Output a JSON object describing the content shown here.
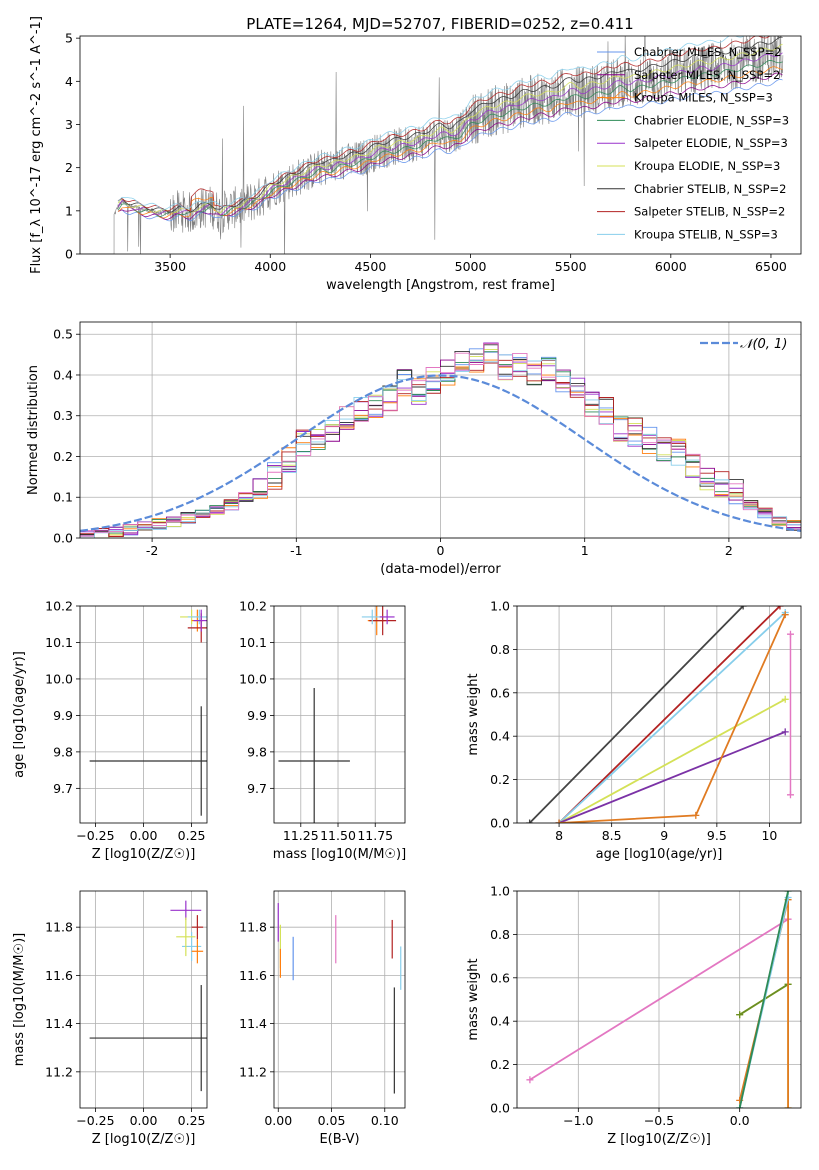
{
  "figure_title": "PLATE=1264, MJD=52707, FIBERID=0252, z=0.411",
  "chart_data": [
    {
      "id": "spectrum",
      "type": "line",
      "title": "PLATE=1264, MJD=52707, FIBERID=0252, z=0.411",
      "xlabel": "wavelength [Angstrom, rest frame]",
      "ylabel": "Flux [f_λ 10^-17 erg cm^-2 s^-1 A^-1]",
      "xlim": [
        3050,
        6650
      ],
      "ylim": [
        0,
        5.05
      ],
      "xticks": [
        3500,
        4000,
        4500,
        5000,
        5500,
        6000,
        6500
      ],
      "yticks": [
        0,
        1,
        2,
        3,
        4,
        5
      ],
      "grid": false,
      "legend_position": "top-right",
      "data_start": 3220,
      "model_start": 3240,
      "observed": {
        "x": [
          3220,
          3240,
          3260,
          3300,
          3350,
          3400,
          3450,
          3500,
          3550,
          3600,
          3650,
          3700,
          3750,
          3800,
          3850,
          3900,
          3950,
          4000,
          4050,
          4100,
          4150,
          4200,
          4250,
          4300,
          4350,
          4400,
          4450,
          4500,
          4550,
          4600,
          4650,
          4700,
          4750,
          4800,
          4850,
          4900,
          4950,
          5000,
          5050,
          5100,
          5150,
          5200,
          5250,
          5300,
          5350,
          5400,
          5450,
          5500,
          5550,
          5600,
          5650,
          5700,
          5750,
          5800,
          5850,
          5900,
          5950,
          6000,
          6050,
          6100,
          6150,
          6200,
          6250,
          6300,
          6350,
          6400,
          6450,
          6500,
          6550
        ],
        "y": [
          0.9,
          1.1,
          1.2,
          1.1,
          1.05,
          1.0,
          0.95,
          0.95,
          1.0,
          0.95,
          1.05,
          1.1,
          0.95,
          1.05,
          1.1,
          1.2,
          1.3,
          1.5,
          1.6,
          1.7,
          1.8,
          1.9,
          2.0,
          2.0,
          2.1,
          2.15,
          2.2,
          2.3,
          2.4,
          2.45,
          2.5,
          2.55,
          2.6,
          2.7,
          2.8,
          2.75,
          2.85,
          3.1,
          3.2,
          3.3,
          3.35,
          3.4,
          3.5,
          3.55,
          3.6,
          3.6,
          3.7,
          3.8,
          3.75,
          3.8,
          3.85,
          3.9,
          4.0,
          3.95,
          4.0,
          4.05,
          4.1,
          4.15,
          4.2,
          4.25,
          4.3,
          4.3,
          4.35,
          4.4,
          4.45,
          4.5,
          4.55,
          4.6,
          4.65
        ]
      },
      "series": [
        {
          "name": "Chabrier MILES, N_SSP=2",
          "color": "#6495ed"
        },
        {
          "name": "Salpeter MILES, N_SSP=2",
          "color": "#8b008b"
        },
        {
          "name": "Kroupa MILES, N_SSP=3",
          "color": "#ff7f0e"
        },
        {
          "name": "Chabrier ELODIE, N_SSP=3",
          "color": "#2e8b57"
        },
        {
          "name": "Salpeter ELODIE, N_SSP=3",
          "color": "#9932cc"
        },
        {
          "name": "Kroupa ELODIE, N_SSP=3",
          "color": "#d4e157"
        },
        {
          "name": "Chabrier STELIB, N_SSP=2",
          "color": "#333333"
        },
        {
          "name": "Salpeter STELIB, N_SSP=2",
          "color": "#b22222"
        },
        {
          "name": "Kroupa STELIB, N_SSP=3",
          "color": "#87ceeb"
        }
      ]
    },
    {
      "id": "residuals",
      "type": "line",
      "xlabel": "(data-model)/error",
      "ylabel": "Normed distribution",
      "xlim": [
        -2.5,
        2.5
      ],
      "ylim": [
        0,
        0.53
      ],
      "xticks": [
        -2,
        -1,
        0,
        1,
        2
      ],
      "yticks": [
        0.0,
        0.1,
        0.2,
        0.3,
        0.4,
        0.5
      ],
      "grid": true,
      "legend_position": "top-right",
      "gaussian_label": "𝒩(0, 1)",
      "gaussian_color": "#5b8bd9",
      "bin_width": 0.1,
      "bin_start": -2.5,
      "histogram_base": [
        0.005,
        0.01,
        0.015,
        0.02,
        0.03,
        0.035,
        0.04,
        0.05,
        0.06,
        0.07,
        0.08,
        0.1,
        0.12,
        0.15,
        0.19,
        0.23,
        0.25,
        0.27,
        0.29,
        0.31,
        0.32,
        0.34,
        0.38,
        0.36,
        0.39,
        0.41,
        0.44,
        0.43,
        0.45,
        0.42,
        0.43,
        0.4,
        0.41,
        0.38,
        0.36,
        0.33,
        0.31,
        0.27,
        0.26,
        0.24,
        0.22,
        0.21,
        0.18,
        0.15,
        0.13,
        0.11,
        0.08,
        0.06,
        0.04,
        0.03
      ]
    },
    {
      "id": "age-vs-z",
      "type": "scatter",
      "xlabel": "Z [log10(Z/Z☉)]",
      "ylabel": "age  [log10(age/yr)]",
      "xlim": [
        -0.33,
        0.33
      ],
      "ylim": [
        9.605,
        10.2
      ],
      "xticks": [
        -0.25,
        0.0,
        0.25
      ],
      "xtick_labels": [
        "−0.25",
        "0.00",
        "0.25"
      ],
      "yticks": [
        9.7,
        9.8,
        9.9,
        10.0,
        10.1,
        10.2
      ],
      "grid": true,
      "points": [
        {
          "x": 0.3,
          "y": 9.775,
          "xerr": 0.58,
          "yerr": 0.15,
          "color": "#333333"
        },
        {
          "x": 0.25,
          "y": 10.17,
          "xerr": 0.06,
          "yerr": 0.02,
          "color": "#d4e157"
        },
        {
          "x": 0.28,
          "y": 10.16,
          "xerr": 0.03,
          "yerr": 0.03,
          "color": "#ff7f0e"
        },
        {
          "x": 0.3,
          "y": 10.14,
          "xerr": 0.07,
          "yerr": 0.04,
          "color": "#b22222"
        },
        {
          "x": 0.29,
          "y": 10.17,
          "xerr": 0.06,
          "yerr": 0.02,
          "color": "#87ceeb"
        },
        {
          "x": 0.3,
          "y": 10.16,
          "xerr": 0.04,
          "yerr": 0.03,
          "color": "#9932cc"
        }
      ]
    },
    {
      "id": "age-vs-mass",
      "type": "scatter",
      "xlabel": "mass [log10(M/M☉)]",
      "ylabel": "",
      "xlim": [
        11.07,
        11.95
      ],
      "ylim": [
        9.605,
        10.2
      ],
      "xticks": [
        11.25,
        11.5,
        11.75
      ],
      "xtick_labels": [
        "11.25",
        "11.50",
        "11.75"
      ],
      "yticks": [
        9.7,
        9.8,
        9.9,
        10.0,
        10.1,
        10.2
      ],
      "grid": true,
      "points": [
        {
          "x": 11.34,
          "y": 9.775,
          "xerr": 0.24,
          "yerr": 0.2,
          "color": "#333333"
        },
        {
          "x": 11.76,
          "y": 10.16,
          "xerr": 0.06,
          "yerr": 0.04,
          "color": "#ff7f0e"
        },
        {
          "x": 11.8,
          "y": 10.16,
          "xerr": 0.09,
          "yerr": 0.04,
          "color": "#b22222"
        },
        {
          "x": 11.73,
          "y": 10.17,
          "xerr": 0.07,
          "yerr": 0.02,
          "color": "#87ceeb"
        },
        {
          "x": 11.83,
          "y": 10.17,
          "xerr": 0.05,
          "yerr": 0.02,
          "color": "#9932cc"
        }
      ]
    },
    {
      "id": "weight-vs-age",
      "type": "line",
      "xlabel": "age  [log10(age/yr)]",
      "ylabel": "mass weight",
      "xlim": [
        7.6,
        10.3
      ],
      "ylim": [
        0,
        1.0
      ],
      "xticks": [
        8.0,
        8.5,
        9.0,
        9.5,
        10.0
      ],
      "yticks": [
        0.0,
        0.2,
        0.4,
        0.6,
        0.8,
        1.0
      ],
      "grid": true,
      "series": [
        {
          "color": "#444444",
          "x": [
            7.72,
            9.75
          ],
          "y": [
            0,
            1.0
          ]
        },
        {
          "color": "#b22222",
          "x": [
            8.0,
            10.1
          ],
          "y": [
            0,
            1.0
          ]
        },
        {
          "color": "#87ceeb",
          "x": [
            8.0,
            10.15
          ],
          "y": [
            0,
            0.97
          ]
        },
        {
          "color": "#d4e157",
          "x": [
            8.0,
            10.15
          ],
          "y": [
            0,
            0.57
          ]
        },
        {
          "color": "#7b32a6",
          "x": [
            8.0,
            10.15
          ],
          "y": [
            0,
            0.42
          ]
        },
        {
          "color": "#e07b22",
          "x": [
            8.0,
            9.3,
            10.15
          ],
          "y": [
            0,
            0.035,
            0.96
          ]
        }
      ],
      "vertical_marker": {
        "color": "#e377c2",
        "x": 10.2,
        "y_low": 0.13,
        "y_high": 0.87
      }
    },
    {
      "id": "mass-vs-z",
      "type": "scatter",
      "xlabel": "Z [log10(Z/Z☉)]",
      "ylabel": "mass [log10(M/M☉)]",
      "xlim": [
        -0.33,
        0.33
      ],
      "ylim": [
        11.05,
        11.95
      ],
      "xticks": [
        -0.25,
        0.0,
        0.25
      ],
      "xtick_labels": [
        "−0.25",
        "0.00",
        "0.25"
      ],
      "yticks": [
        11.2,
        11.4,
        11.6,
        11.8
      ],
      "grid": true,
      "points": [
        {
          "x": 0.3,
          "y": 11.34,
          "xerr": 0.58,
          "yerr": 0.22,
          "color": "#333333"
        },
        {
          "x": 0.22,
          "y": 11.87,
          "xerr": 0.08,
          "yerr": 0.04,
          "color": "#9932cc"
        },
        {
          "x": 0.28,
          "y": 11.8,
          "xerr": 0.03,
          "yerr": 0.05,
          "color": "#b22222"
        },
        {
          "x": 0.25,
          "y": 11.72,
          "xerr": 0.05,
          "yerr": 0.06,
          "color": "#87ceeb"
        },
        {
          "x": 0.22,
          "y": 11.76,
          "xerr": 0.05,
          "yerr": 0.08,
          "color": "#d4e157"
        },
        {
          "x": 0.28,
          "y": 11.7,
          "xerr": 0.03,
          "yerr": 0.05,
          "color": "#ff7f0e"
        }
      ]
    },
    {
      "id": "mass-vs-ebv",
      "type": "scatter",
      "xlabel": "E(B-V)",
      "ylabel": "",
      "xlim": [
        -0.004,
        0.119
      ],
      "ylim": [
        11.05,
        11.95
      ],
      "xticks": [
        0.0,
        0.05,
        0.1
      ],
      "xtick_labels": [
        "0.00",
        "0.05",
        "0.10"
      ],
      "yticks": [
        11.2,
        11.4,
        11.6,
        11.8
      ],
      "grid": true,
      "points": [
        {
          "x": 0.0,
          "y": 11.82,
          "xerr": 0.0,
          "yerr": 0.08,
          "color": "#9932cc"
        },
        {
          "x": 0.002,
          "y": 11.72,
          "xerr": 0.0,
          "yerr": 0.09,
          "color": "#d4e157"
        },
        {
          "x": 0.002,
          "y": 11.65,
          "xerr": 0.0,
          "yerr": 0.06,
          "color": "#ff7f0e"
        },
        {
          "x": 0.014,
          "y": 11.67,
          "xerr": 0.0,
          "yerr": 0.09,
          "color": "#6495ed"
        },
        {
          "x": 0.054,
          "y": 11.75,
          "xerr": 0.0,
          "yerr": 0.1,
          "color": "#e377c2"
        },
        {
          "x": 0.107,
          "y": 11.75,
          "xerr": 0.0,
          "yerr": 0.08,
          "color": "#b22222"
        },
        {
          "x": 0.109,
          "y": 11.33,
          "xerr": 0.0,
          "yerr": 0.22,
          "color": "#333333"
        },
        {
          "x": 0.115,
          "y": 11.63,
          "xerr": 0.0,
          "yerr": 0.09,
          "color": "#87ceeb"
        }
      ]
    },
    {
      "id": "weight-vs-z",
      "type": "line",
      "xlabel": "Z [log10(Z/Z☉)]",
      "ylabel": "mass weight",
      "xlim": [
        -1.38,
        0.38
      ],
      "ylim": [
        0,
        1.0
      ],
      "xticks": [
        -1.0,
        -0.5,
        0.0
      ],
      "xtick_labels": [
        "−1.0",
        "−0.5",
        "0.0"
      ],
      "yticks": [
        0.0,
        0.2,
        0.4,
        0.6,
        0.8,
        1.0
      ],
      "grid": true,
      "series": [
        {
          "color": "#e377c2",
          "x": [
            -1.3,
            0.3
          ],
          "y": [
            0.13,
            0.87
          ]
        },
        {
          "color": "#d4e157",
          "x": [
            0.0,
            0.3,
            0.3
          ],
          "y": [
            0.43,
            0.57,
            0.0
          ]
        },
        {
          "color": "#6b8e23",
          "x": [
            0.0,
            0.3
          ],
          "y": [
            0.43,
            0.57
          ]
        },
        {
          "color": "#e07b22",
          "x": [
            0.0,
            0.3,
            0.3
          ],
          "y": [
            0.035,
            0.96,
            0.0
          ]
        },
        {
          "color": "#87ceeb",
          "x": [
            0.0,
            0.3
          ],
          "y": [
            0.0,
            0.97
          ]
        },
        {
          "color": "#2e8b57",
          "x": [
            0.0,
            0.3
          ],
          "y": [
            0.0,
            1.0
          ]
        }
      ]
    }
  ]
}
